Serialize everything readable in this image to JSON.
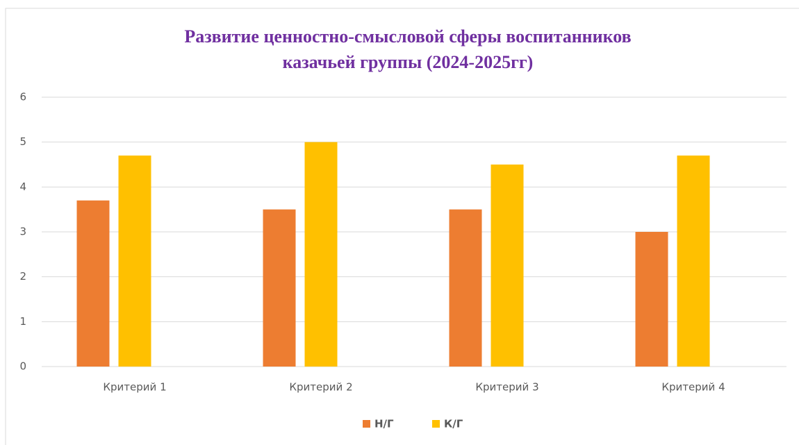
{
  "chart_data": {
    "type": "bar",
    "title": [
      "Развитие ценностно-смысловой  сферы воспитанников",
      "казачьей группы (2024-2025гг)"
    ],
    "categories": [
      "Критерий 1",
      "Критерий 2",
      "Критерий 3",
      "Критерий 4"
    ],
    "series": [
      {
        "name": "Н/Г",
        "color": "#ED7D31",
        "values": [
          3.7,
          3.5,
          3.5,
          3
        ]
      },
      {
        "name": "К/Г",
        "color": "#FFC000",
        "values": [
          4.7,
          5,
          4.5,
          4.7
        ]
      }
    ],
    "ylim": [
      0,
      6
    ],
    "yticks": [
      0,
      1,
      2,
      3,
      4,
      5,
      6
    ],
    "grid": true,
    "legend": "bottom"
  }
}
